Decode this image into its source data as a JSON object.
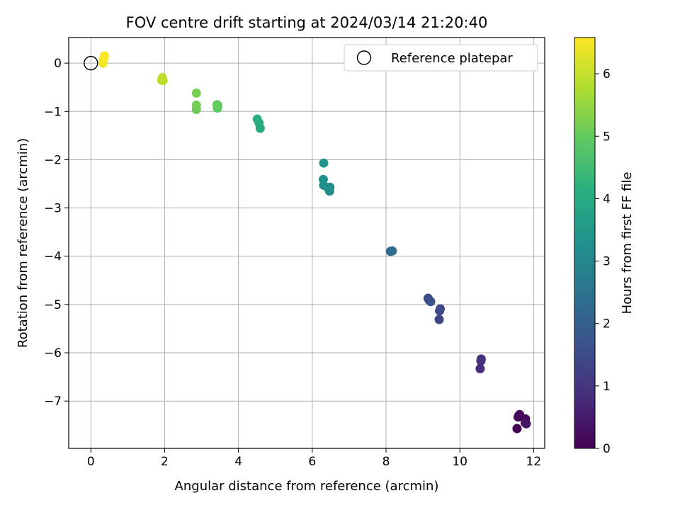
{
  "chart_data": {
    "type": "scatter",
    "title": "FOV centre drift starting at 2024/03/14 21:20:40",
    "xlabel": "Angular distance from reference (arcmin)",
    "ylabel": "Rotation from reference (arcmin)",
    "xlim": [
      -0.6,
      12.3
    ],
    "ylim": [
      -7.98,
      0.53
    ],
    "xticks": [
      0,
      2,
      4,
      6,
      8,
      10,
      12
    ],
    "yticks": [
      0,
      -1,
      -2,
      -3,
      -4,
      -5,
      -6,
      -7
    ],
    "grid": true,
    "legend": {
      "position": "top-right",
      "entries": [
        {
          "label": "Reference platepar",
          "marker": "open-circle"
        }
      ]
    },
    "reference_point": {
      "x": 0,
      "y": 0
    },
    "colorbar": {
      "label": "Hours from first FF file",
      "colormap": "viridis",
      "range": [
        0,
        6.58
      ],
      "ticks": [
        0,
        1,
        2,
        3,
        4,
        5,
        6
      ]
    },
    "points": [
      {
        "x": 11.55,
        "y": -7.57,
        "c": 0.0
      },
      {
        "x": 11.58,
        "y": -7.33,
        "c": 0.05
      },
      {
        "x": 11.62,
        "y": -7.28,
        "c": 0.1
      },
      {
        "x": 11.6,
        "y": -7.3,
        "c": 0.15
      },
      {
        "x": 11.78,
        "y": -7.37,
        "c": 0.2
      },
      {
        "x": 11.8,
        "y": -7.47,
        "c": 0.25
      },
      {
        "x": 11.77,
        "y": -7.45,
        "c": 0.3
      },
      {
        "x": 10.55,
        "y": -6.33,
        "c": 0.85
      },
      {
        "x": 10.57,
        "y": -6.17,
        "c": 0.9
      },
      {
        "x": 10.58,
        "y": -6.13,
        "c": 0.95
      },
      {
        "x": 9.44,
        "y": -5.31,
        "c": 1.35
      },
      {
        "x": 9.45,
        "y": -5.13,
        "c": 1.4
      },
      {
        "x": 9.47,
        "y": -5.09,
        "c": 1.45
      },
      {
        "x": 9.14,
        "y": -4.87,
        "c": 1.5
      },
      {
        "x": 9.17,
        "y": -4.91,
        "c": 1.55
      },
      {
        "x": 9.21,
        "y": -4.94,
        "c": 1.6
      },
      {
        "x": 8.12,
        "y": -3.9,
        "c": 2.3
      },
      {
        "x": 8.17,
        "y": -3.89,
        "c": 2.35
      },
      {
        "x": 6.47,
        "y": -2.65,
        "c": 3.1
      },
      {
        "x": 6.48,
        "y": -2.57,
        "c": 3.15
      },
      {
        "x": 6.44,
        "y": -2.6,
        "c": 3.2
      },
      {
        "x": 6.31,
        "y": -2.53,
        "c": 3.25
      },
      {
        "x": 6.3,
        "y": -2.41,
        "c": 3.3
      },
      {
        "x": 6.31,
        "y": -2.07,
        "c": 3.35
      },
      {
        "x": 4.59,
        "y": -1.35,
        "c": 4.0
      },
      {
        "x": 4.56,
        "y": -1.24,
        "c": 4.05
      },
      {
        "x": 4.51,
        "y": -1.16,
        "c": 4.1
      },
      {
        "x": 3.43,
        "y": -0.93,
        "c": 4.9
      },
      {
        "x": 3.44,
        "y": -0.88,
        "c": 4.95
      },
      {
        "x": 3.42,
        "y": -0.86,
        "c": 5.0
      },
      {
        "x": 2.86,
        "y": -0.96,
        "c": 5.1
      },
      {
        "x": 2.86,
        "y": -0.87,
        "c": 5.15
      },
      {
        "x": 2.86,
        "y": -0.62,
        "c": 5.2
      },
      {
        "x": 1.96,
        "y": -0.36,
        "c": 5.85
      },
      {
        "x": 1.92,
        "y": -0.35,
        "c": 5.9
      },
      {
        "x": 1.94,
        "y": -0.3,
        "c": 5.95
      },
      {
        "x": 0.33,
        "y": 0.0,
        "c": 6.45
      },
      {
        "x": 0.35,
        "y": 0.1,
        "c": 6.5
      },
      {
        "x": 0.37,
        "y": 0.15,
        "c": 6.55
      }
    ]
  }
}
